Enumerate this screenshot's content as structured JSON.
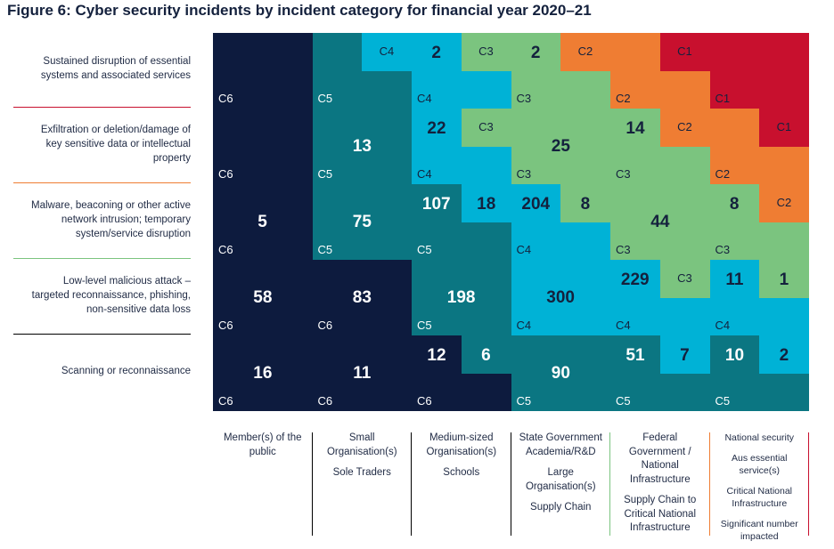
{
  "title": "Figure 6: Cyber security incidents by incident category for financial year 2020–21",
  "chart_data": {
    "type": "heatmap",
    "title": "Figure 6: Cyber security incidents by incident category for financial year 2020–21",
    "rows": [
      {
        "label_lines": [
          "Sustained disruption of essential",
          "systems and associated services"
        ],
        "sep_color": "#c8102e"
      },
      {
        "label_lines": [
          "Exfiltration or deletion/damage of",
          "key sensitive data or intellectual",
          "property"
        ],
        "sep_color": "#ef7d33"
      },
      {
        "label_lines": [
          "Malware, beaconing or other active",
          "network intrusion; temporary",
          "system/service disruption"
        ],
        "sep_color": "#7bc47f"
      },
      {
        "label_lines": [
          "Low-level malicious attack –",
          "targeted reconnaissance, phishing,",
          "non-sensitive data loss"
        ],
        "sep_color": "#000000"
      },
      {
        "label_lines": [
          "Scanning or reconnaissance"
        ],
        "sep_color": null
      }
    ],
    "columns": [
      {
        "label_groups": [
          [
            "Member(s) of the",
            "public"
          ]
        ],
        "sep_color": "#000000"
      },
      {
        "label_groups": [
          [
            "Small",
            "Organisation(s)"
          ],
          [
            "Sole Traders"
          ]
        ],
        "sep_color": "#000000"
      },
      {
        "label_groups": [
          [
            "Medium-sized",
            "Organisation(s)"
          ],
          [
            "Schools"
          ]
        ],
        "sep_color": "#000000"
      },
      {
        "label_groups": [
          [
            "State Government",
            "Academia/R&D"
          ],
          [
            "Large",
            "Organisation(s)"
          ],
          [
            "Supply Chain"
          ]
        ],
        "sep_color": "#7bc47f"
      },
      {
        "label_groups": [
          [
            "Federal",
            "Government /",
            "National",
            "Infrastructure"
          ],
          [
            "Supply Chain to",
            "Critical National",
            "Infrastructure"
          ]
        ],
        "sep_color": "#ef7d33"
      },
      {
        "label_groups": [
          [
            "National security"
          ],
          [
            "Aus essential",
            "service(s)"
          ],
          [
            "Critical National",
            "Infrastructure"
          ],
          [
            "Significant number",
            "impacted"
          ]
        ],
        "sep_color": "#c8102e",
        "small": true
      }
    ],
    "category_colors": {
      "C1": "#c8102e",
      "C2": "#ef7d33",
      "C3": "#7bc47f",
      "C4": "#00b2d6",
      "C5": "#0b7682",
      "C6": "#0d1b3e"
    },
    "cells": [
      {
        "row": 0,
        "col": 0,
        "category": "C6",
        "count": null
      },
      {
        "row": 0,
        "col": 1,
        "category": "C5",
        "count": null,
        "inner": {
          "category": "C4",
          "count": null
        }
      },
      {
        "row": 0,
        "col": 2,
        "category": "C4",
        "count": 2,
        "inner": {
          "category": "C3",
          "count": null
        }
      },
      {
        "row": 0,
        "col": 3,
        "category": "C3",
        "count": 2,
        "inner": {
          "category": "C2",
          "count": null
        }
      },
      {
        "row": 0,
        "col": 4,
        "category": "C2",
        "count": null,
        "inner": {
          "category": "C1",
          "count": null
        }
      },
      {
        "row": 0,
        "col": 5,
        "category": "C1",
        "count": null
      },
      {
        "row": 1,
        "col": 0,
        "category": "C6",
        "count": null
      },
      {
        "row": 1,
        "col": 1,
        "category": "C5",
        "count": 13
      },
      {
        "row": 1,
        "col": 2,
        "category": "C4",
        "count": 22,
        "inner": {
          "category": "C3",
          "count": null
        }
      },
      {
        "row": 1,
        "col": 3,
        "category": "C3",
        "count": 25
      },
      {
        "row": 1,
        "col": 4,
        "category": "C3",
        "count": 14,
        "inner": {
          "category": "C2",
          "count": null
        }
      },
      {
        "row": 1,
        "col": 5,
        "category": "C2",
        "count": null,
        "inner": {
          "category": "C1",
          "count": null
        }
      },
      {
        "row": 2,
        "col": 0,
        "category": "C6",
        "count": 5
      },
      {
        "row": 2,
        "col": 1,
        "category": "C5",
        "count": 75
      },
      {
        "row": 2,
        "col": 2,
        "category": "C5",
        "count": 107,
        "inner": {
          "category": "C4",
          "count": 18
        }
      },
      {
        "row": 2,
        "col": 3,
        "category": "C4",
        "count": 204,
        "inner": {
          "category": "C3",
          "count": 8
        }
      },
      {
        "row": 2,
        "col": 4,
        "category": "C3",
        "count": 44
      },
      {
        "row": 2,
        "col": 5,
        "category": "C3",
        "count": 8,
        "inner": {
          "category": "C2",
          "count": null
        }
      },
      {
        "row": 3,
        "col": 0,
        "category": "C6",
        "count": 58
      },
      {
        "row": 3,
        "col": 1,
        "category": "C6",
        "count": 83
      },
      {
        "row": 3,
        "col": 2,
        "category": "C5",
        "count": 198
      },
      {
        "row": 3,
        "col": 3,
        "category": "C4",
        "count": 300
      },
      {
        "row": 3,
        "col": 4,
        "category": "C4",
        "count": 229,
        "inner": {
          "category": "C3",
          "count": null
        }
      },
      {
        "row": 3,
        "col": 5,
        "category": "C4",
        "count": 11,
        "inner": {
          "category": "C3",
          "count": 1
        }
      },
      {
        "row": 4,
        "col": 0,
        "category": "C6",
        "count": 16
      },
      {
        "row": 4,
        "col": 1,
        "category": "C6",
        "count": 11
      },
      {
        "row": 4,
        "col": 2,
        "category": "C6",
        "count": 12,
        "inner": {
          "category": "C5",
          "count": 6
        }
      },
      {
        "row": 4,
        "col": 3,
        "category": "C5",
        "count": 90
      },
      {
        "row": 4,
        "col": 4,
        "category": "C5",
        "count": 51,
        "inner": {
          "category": "C4",
          "count": 7
        }
      },
      {
        "row": 4,
        "col": 5,
        "category": "C5",
        "count": 10,
        "inner": {
          "category": "C4",
          "count": 2
        }
      }
    ]
  }
}
